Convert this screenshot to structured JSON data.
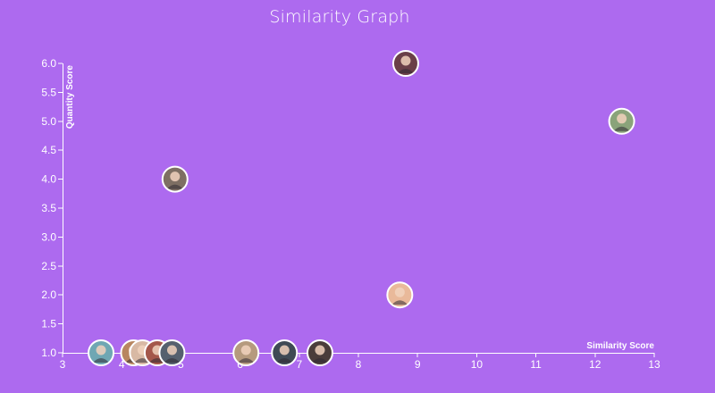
{
  "colors": {
    "background": "#ad6aef",
    "axis": "#ffffff",
    "avatar_border": "#ffffff"
  },
  "chart_data": {
    "type": "scatter",
    "title": "Similarity Graph",
    "xlabel": "Similarity Score",
    "ylabel": "Quantity Score",
    "xlim": [
      3,
      13
    ],
    "ylim": [
      1.0,
      6.0
    ],
    "x_ticks": [
      "3",
      "4",
      "5",
      "6",
      "7",
      "8",
      "9",
      "10",
      "11",
      "12",
      "13"
    ],
    "y_ticks": [
      "1.0",
      "1.5",
      "2.0",
      "2.5",
      "3.0",
      "3.5",
      "4.0",
      "4.5",
      "5.0",
      "5.5",
      "6.0"
    ],
    "marker": "avatar-photo",
    "points": [
      {
        "x": 3.65,
        "y": 1.0,
        "avatar": "man-blonde-teal-background",
        "fill": "#6fa7b3"
      },
      {
        "x": 4.2,
        "y": 1.0,
        "avatar": "woman-brown-hair",
        "fill": "#b88660"
      },
      {
        "x": 4.35,
        "y": 1.0,
        "avatar": "woman-light-hair",
        "fill": "#d8b9a4"
      },
      {
        "x": 4.6,
        "y": 1.0,
        "avatar": "woman-red-hair",
        "fill": "#a4574a"
      },
      {
        "x": 4.85,
        "y": 1.0,
        "avatar": "woman-dark-hair",
        "fill": "#55606e"
      },
      {
        "x": 6.1,
        "y": 1.0,
        "avatar": "woman-blonde",
        "fill": "#b59a7e"
      },
      {
        "x": 6.75,
        "y": 1.0,
        "avatar": "man-dark-shirt",
        "fill": "#3f4a55"
      },
      {
        "x": 7.35,
        "y": 1.0,
        "avatar": "woman-black-hair",
        "fill": "#4a3d3a"
      },
      {
        "x": 8.7,
        "y": 2.0,
        "avatar": "cartoon-boy",
        "fill": "#e9b99a"
      },
      {
        "x": 4.9,
        "y": 4.0,
        "avatar": "man-gray-hair",
        "fill": "#7e6f63"
      },
      {
        "x": 12.45,
        "y": 5.0,
        "avatar": "man-sunglasses",
        "fill": "#8aa37a"
      },
      {
        "x": 8.8,
        "y": 6.0,
        "avatar": "woman-long-dark-hair",
        "fill": "#6a3f48"
      }
    ]
  }
}
